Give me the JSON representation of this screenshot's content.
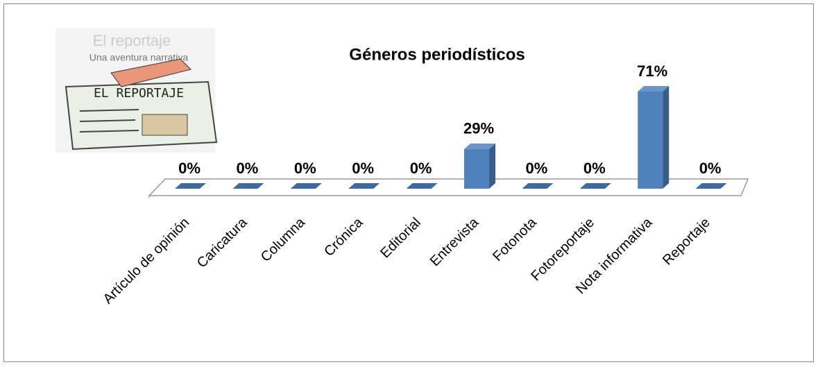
{
  "chart_data": {
    "type": "bar3d",
    "title": "Géneros periodísticos",
    "categories": [
      "Artículo de opinión",
      "Caricatura",
      "Columna",
      "Crónica",
      "Editorial",
      "Entrevista",
      "Fotonota",
      "Fotoreportaje",
      "Nota informativa",
      "Reportaje"
    ],
    "values": [
      0,
      0,
      0,
      0,
      0,
      29,
      0,
      0,
      71,
      0
    ],
    "value_labels": [
      "0%",
      "0%",
      "0%",
      "0%",
      "0%",
      "29%",
      "0%",
      "0%",
      "71%",
      "0%"
    ],
    "color": "#4f81bd",
    "annotations": [
      "El reportaje",
      "Una aventura narrativa",
      "EL REPORTAJE"
    ]
  }
}
